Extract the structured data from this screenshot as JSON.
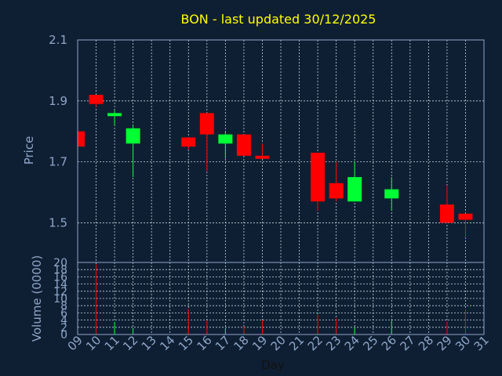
{
  "title": "BON - last updated 30/12/2025",
  "colors": {
    "background": "#0f1f33",
    "frame": "#8ea6c8",
    "grid": "#c8d2de",
    "up": "#00ff33",
    "down": "#ff0000",
    "title": "#ffff00",
    "axis_text": "#8ea6c8"
  },
  "chart_data": [
    {
      "type": "candlestick",
      "ylabel": "Price",
      "ylim": [
        1.37,
        2.1
      ],
      "y_ticks": [
        "2.1",
        "1.9",
        "1.7",
        "1.5"
      ],
      "y_tick_values": [
        2.1,
        1.9,
        1.7,
        1.5
      ],
      "grid": true,
      "candles": [
        {
          "day": "09",
          "open": 1.8,
          "close": 1.75,
          "high": 1.8,
          "low": 1.75
        },
        {
          "day": "10",
          "open": 1.92,
          "close": 1.89,
          "high": 1.92,
          "low": 1.88
        },
        {
          "day": "11",
          "open": 1.85,
          "close": 1.86,
          "high": 1.87,
          "low": 1.82
        },
        {
          "day": "12",
          "open": 1.76,
          "close": 1.81,
          "high": 1.82,
          "low": 1.65
        },
        {
          "day": "15",
          "open": 1.78,
          "close": 1.75,
          "high": 1.78,
          "low": 1.74
        },
        {
          "day": "16",
          "open": 1.86,
          "close": 1.79,
          "high": 1.86,
          "low": 1.67
        },
        {
          "day": "17",
          "open": 1.76,
          "close": 1.79,
          "high": 1.8,
          "low": 1.71
        },
        {
          "day": "18",
          "open": 1.79,
          "close": 1.72,
          "high": 1.79,
          "low": 1.72
        },
        {
          "day": "19",
          "open": 1.72,
          "close": 1.71,
          "high": 1.76,
          "low": 1.71
        },
        {
          "day": "22",
          "open": 1.73,
          "close": 1.57,
          "high": 1.73,
          "low": 1.54
        },
        {
          "day": "23",
          "open": 1.63,
          "close": 1.58,
          "high": 1.7,
          "low": 1.57
        },
        {
          "day": "24",
          "open": 1.57,
          "close": 1.65,
          "high": 1.7,
          "low": 1.57
        },
        {
          "day": "26",
          "open": 1.58,
          "close": 1.61,
          "high": 1.65,
          "low": 1.54
        },
        {
          "day": "29",
          "open": 1.56,
          "close": 1.5,
          "high": 1.62,
          "low": 1.5
        },
        {
          "day": "30",
          "open": 1.53,
          "close": 1.51,
          "high": 1.53,
          "low": 1.45
        }
      ]
    },
    {
      "type": "bar",
      "ylabel": "Volume (0000)",
      "ylim": [
        0,
        20
      ],
      "y_ticks": [
        "20",
        "18",
        "16",
        "14",
        "12",
        "10",
        "8",
        "6",
        "4",
        "2",
        "0"
      ],
      "y_tick_values": [
        20,
        18,
        16,
        14,
        12,
        10,
        8,
        6,
        4,
        2,
        0
      ],
      "grid": true,
      "xlabel": "Day",
      "x_ticks": [
        "09",
        "10",
        "11",
        "12",
        "13",
        "14",
        "15",
        "16",
        "17",
        "18",
        "19",
        "20",
        "21",
        "22",
        "23",
        "24",
        "25",
        "26",
        "27",
        "28",
        "29",
        "30",
        "31"
      ],
      "bars": [
        {
          "day": "10",
          "value": 19.5,
          "color": "down"
        },
        {
          "day": "11",
          "value": 3.5,
          "color": "up"
        },
        {
          "day": "12",
          "value": 1.8,
          "color": "up"
        },
        {
          "day": "15",
          "value": 7.0,
          "color": "down"
        },
        {
          "day": "16",
          "value": 3.8,
          "color": "down"
        },
        {
          "day": "17",
          "value": 1.5,
          "color": "up"
        },
        {
          "day": "18",
          "value": 2.2,
          "color": "down"
        },
        {
          "day": "19",
          "value": 4.0,
          "color": "down"
        },
        {
          "day": "22",
          "value": 5.5,
          "color": "down"
        },
        {
          "day": "23",
          "value": 4.5,
          "color": "down"
        },
        {
          "day": "24",
          "value": 2.0,
          "color": "up"
        },
        {
          "day": "26",
          "value": 4.0,
          "color": "up"
        },
        {
          "day": "29",
          "value": 3.5,
          "color": "down"
        },
        {
          "day": "30",
          "value": 7.0,
          "color": "down"
        }
      ]
    }
  ]
}
